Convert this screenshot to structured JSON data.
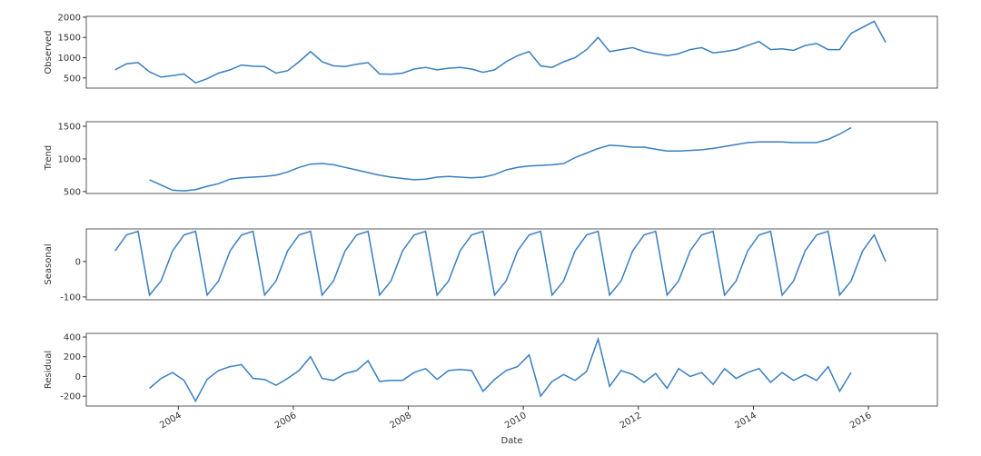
{
  "chart_data": [
    {
      "type": "line",
      "ylabel": "Observed",
      "color": "#3a7ebf",
      "x": [
        2002.9,
        2003.1,
        2003.3,
        2003.5,
        2003.7,
        2003.9,
        2004.1,
        2004.3,
        2004.5,
        2004.7,
        2004.9,
        2005.1,
        2005.3,
        2005.5,
        2005.7,
        2005.9,
        2006.1,
        2006.3,
        2006.5,
        2006.7,
        2006.9,
        2007.1,
        2007.3,
        2007.5,
        2007.7,
        2007.9,
        2008.1,
        2008.3,
        2008.5,
        2008.7,
        2008.9,
        2009.1,
        2009.3,
        2009.5,
        2009.7,
        2009.9,
        2010.1,
        2010.3,
        2010.5,
        2010.7,
        2010.9,
        2011.1,
        2011.3,
        2011.5,
        2011.7,
        2011.9,
        2012.1,
        2012.3,
        2012.5,
        2012.7,
        2012.9,
        2013.1,
        2013.3,
        2013.5,
        2013.7,
        2013.9,
        2014.1,
        2014.3,
        2014.5,
        2014.7,
        2014.9,
        2015.1,
        2015.3,
        2015.5,
        2015.7,
        2015.9,
        2016.1,
        2016.3
      ],
      "values": [
        700,
        850,
        880,
        650,
        520,
        560,
        600,
        380,
        480,
        620,
        700,
        820,
        790,
        780,
        620,
        680,
        900,
        1150,
        900,
        800,
        780,
        840,
        880,
        600,
        590,
        620,
        720,
        760,
        700,
        740,
        760,
        720,
        640,
        700,
        900,
        1050,
        1150,
        800,
        760,
        900,
        1000,
        1200,
        1500,
        1150,
        1200,
        1250,
        1150,
        1100,
        1050,
        1100,
        1200,
        1250,
        1120,
        1150,
        1200,
        1300,
        1400,
        1200,
        1220,
        1180,
        1300,
        1350,
        1200,
        1200,
        1600,
        1750,
        1900,
        1380
      ],
      "xlim": [
        2002.4,
        2017.2
      ],
      "ylim": [
        250,
        2020
      ],
      "yticks": [
        500,
        1000,
        1500,
        2000
      ]
    },
    {
      "type": "line",
      "ylabel": "Trend",
      "color": "#3a7ebf",
      "x": [
        2002.9,
        2003.1,
        2003.3,
        2003.5,
        2003.7,
        2003.9,
        2004.1,
        2004.3,
        2004.5,
        2004.7,
        2004.9,
        2005.1,
        2005.3,
        2005.5,
        2005.7,
        2005.9,
        2006.1,
        2006.3,
        2006.5,
        2006.7,
        2006.9,
        2007.1,
        2007.3,
        2007.5,
        2007.7,
        2007.9,
        2008.1,
        2008.3,
        2008.5,
        2008.7,
        2008.9,
        2009.1,
        2009.3,
        2009.5,
        2009.7,
        2009.9,
        2010.1,
        2010.3,
        2010.5,
        2010.7,
        2010.9,
        2011.1,
        2011.3,
        2011.5,
        2011.7,
        2011.9,
        2012.1,
        2012.3,
        2012.5,
        2012.7,
        2012.9,
        2013.1,
        2013.3,
        2013.5,
        2013.7,
        2013.9,
        2014.1,
        2014.3,
        2014.5,
        2014.7,
        2014.9,
        2015.1,
        2015.3,
        2015.5,
        2015.7,
        2015.9,
        2016.1,
        2016.3
      ],
      "values": [
        null,
        null,
        null,
        680,
        600,
        520,
        510,
        530,
        580,
        620,
        690,
        710,
        720,
        730,
        750,
        800,
        870,
        920,
        930,
        910,
        870,
        830,
        790,
        750,
        720,
        700,
        680,
        690,
        720,
        730,
        720,
        710,
        720,
        760,
        830,
        870,
        890,
        900,
        910,
        930,
        1020,
        1090,
        1160,
        1210,
        1200,
        1180,
        1180,
        1150,
        1120,
        1120,
        1130,
        1140,
        1160,
        1190,
        1220,
        1250,
        1260,
        1260,
        1260,
        1250,
        1250,
        1250,
        1300,
        1380,
        1480,
        null,
        null,
        null
      ],
      "xlim": [
        2002.4,
        2017.2
      ],
      "ylim": [
        470,
        1570
      ],
      "yticks": [
        500,
        1000,
        1500
      ]
    },
    {
      "type": "line",
      "ylabel": "Seasonal",
      "color": "#3a7ebf",
      "x": [
        2002.9,
        2003.1,
        2003.3,
        2003.5,
        2003.7,
        2003.9,
        2004.1,
        2004.3,
        2004.5,
        2004.7,
        2004.9,
        2005.1,
        2005.3,
        2005.5,
        2005.7,
        2005.9,
        2006.1,
        2006.3,
        2006.5,
        2006.7,
        2006.9,
        2007.1,
        2007.3,
        2007.5,
        2007.7,
        2007.9,
        2008.1,
        2008.3,
        2008.5,
        2008.7,
        2008.9,
        2009.1,
        2009.3,
        2009.5,
        2009.7,
        2009.9,
        2010.1,
        2010.3,
        2010.5,
        2010.7,
        2010.9,
        2011.1,
        2011.3,
        2011.5,
        2011.7,
        2011.9,
        2012.1,
        2012.3,
        2012.5,
        2012.7,
        2012.9,
        2013.1,
        2013.3,
        2013.5,
        2013.7,
        2013.9,
        2014.1,
        2014.3,
        2014.5,
        2014.7,
        2014.9,
        2015.1,
        2015.3,
        2015.5,
        2015.7,
        2015.9,
        2016.1,
        2016.3
      ],
      "values": [
        30,
        75,
        85,
        -95,
        -55,
        30,
        75,
        85,
        -95,
        -55,
        30,
        75,
        85,
        -95,
        -55,
        30,
        75,
        85,
        -95,
        -55,
        30,
        75,
        85,
        -95,
        -55,
        30,
        75,
        85,
        -95,
        -55,
        30,
        75,
        85,
        -95,
        -55,
        30,
        75,
        85,
        -95,
        -55,
        30,
        75,
        85,
        -95,
        -55,
        30,
        75,
        85,
        -95,
        -55,
        30,
        75,
        85,
        -95,
        -55,
        30,
        75,
        85,
        -95,
        -55,
        30,
        75,
        85,
        -95,
        -55,
        30,
        75,
        0
      ],
      "xlim": [
        2002.4,
        2017.2
      ],
      "ylim": [
        -108,
        92
      ],
      "yticks": [
        -100,
        0
      ]
    },
    {
      "type": "line",
      "ylabel": "Residual",
      "color": "#3a7ebf",
      "xlabel": "Date",
      "x": [
        2002.9,
        2003.1,
        2003.3,
        2003.5,
        2003.7,
        2003.9,
        2004.1,
        2004.3,
        2004.5,
        2004.7,
        2004.9,
        2005.1,
        2005.3,
        2005.5,
        2005.7,
        2005.9,
        2006.1,
        2006.3,
        2006.5,
        2006.7,
        2006.9,
        2007.1,
        2007.3,
        2007.5,
        2007.7,
        2007.9,
        2008.1,
        2008.3,
        2008.5,
        2008.7,
        2008.9,
        2009.1,
        2009.3,
        2009.5,
        2009.7,
        2009.9,
        2010.1,
        2010.3,
        2010.5,
        2010.7,
        2010.9,
        2011.1,
        2011.3,
        2011.5,
        2011.7,
        2011.9,
        2012.1,
        2012.3,
        2012.5,
        2012.7,
        2012.9,
        2013.1,
        2013.3,
        2013.5,
        2013.7,
        2013.9,
        2014.1,
        2014.3,
        2014.5,
        2014.7,
        2014.9,
        2015.1,
        2015.3,
        2015.5,
        2015.7,
        2015.9,
        2016.1,
        2016.3
      ],
      "values": [
        null,
        null,
        null,
        -120,
        -20,
        40,
        -40,
        -250,
        -30,
        60,
        100,
        120,
        -20,
        -30,
        -90,
        -20,
        60,
        200,
        -20,
        -40,
        30,
        60,
        160,
        -50,
        -40,
        -40,
        40,
        80,
        -30,
        60,
        70,
        60,
        -150,
        -30,
        60,
        100,
        220,
        -200,
        -50,
        20,
        -40,
        50,
        380,
        -100,
        60,
        20,
        -60,
        30,
        -120,
        80,
        0,
        40,
        -80,
        80,
        -20,
        40,
        80,
        -60,
        40,
        -40,
        20,
        -40,
        100,
        -150,
        40,
        null,
        null,
        null
      ],
      "xlim": [
        2002.4,
        2017.2
      ],
      "ylim": [
        -300,
        437
      ],
      "yticks": [
        -200,
        0,
        200,
        400
      ],
      "xticks": [
        2004,
        2006,
        2008,
        2010,
        2012,
        2014,
        2016
      ]
    }
  ]
}
